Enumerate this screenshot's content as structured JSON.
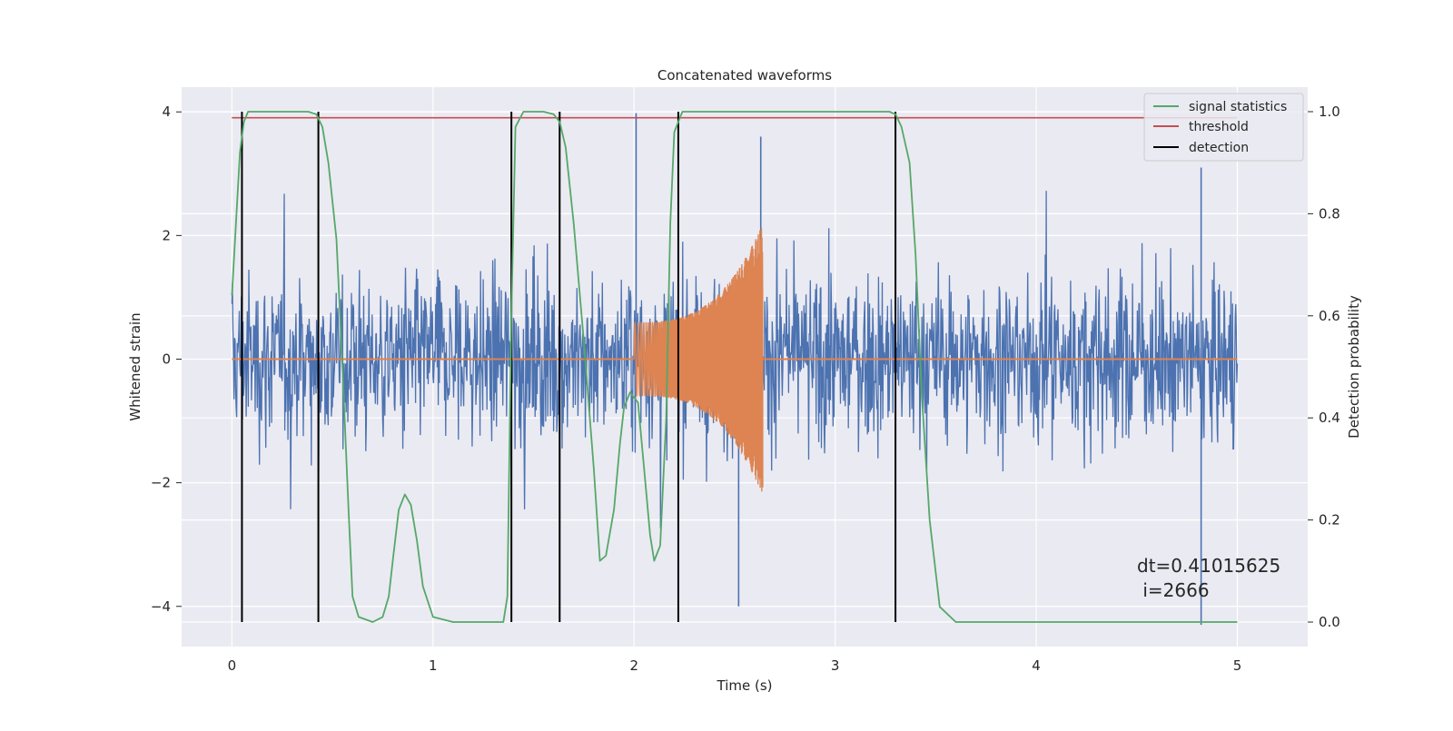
{
  "chart_data": {
    "type": "line",
    "title": "Concatenated waveforms",
    "xlabel": "Time (s)",
    "ylabel": "Whitened strain",
    "y2label": "Detection probability",
    "xlim": [
      -0.25,
      5.35
    ],
    "ylim": [
      -4.65,
      4.4
    ],
    "y2lim": [
      -0.048,
      1.048
    ],
    "xticks": [
      0,
      1,
      2,
      3,
      4,
      5
    ],
    "yticks": [
      -4,
      -2,
      0,
      2,
      4
    ],
    "y2ticks": [
      0.0,
      0.2,
      0.4,
      0.6,
      0.8,
      1.0
    ],
    "xtick_labels": [
      "0",
      "1",
      "2",
      "3",
      "4",
      "5"
    ],
    "ytick_labels": [
      "−4",
      "−2",
      "0",
      "2",
      "4"
    ],
    "y2tick_labels": [
      "0.0",
      "0.2",
      "0.4",
      "0.6",
      "0.8",
      "1.0"
    ],
    "grid": true,
    "legend_position": "top-right",
    "colors": {
      "strain": "#4c72b0",
      "template": "#dd8452",
      "signal_statistics": "#55a868",
      "threshold": "#c44e52",
      "detection": "#000000",
      "axes_face": "#eaeaf2",
      "grid": "#ffffff"
    },
    "strain_series": {
      "x_start": 0,
      "x_end": 5,
      "typical_range": [
        -1.0,
        1.0
      ],
      "max": 3.98,
      "min": -4.3
    },
    "template_chirp": {
      "x_start": 2.0,
      "x_end": 2.64,
      "amplitude_start": 0.6,
      "amplitude_end": 2.2
    },
    "series": [
      {
        "name": "signal statistics",
        "axis": "right",
        "x": [
          0,
          0.02,
          0.04,
          0.06,
          0.08,
          0.12,
          0.2,
          0.3,
          0.38,
          0.42,
          0.45,
          0.48,
          0.52,
          0.55,
          0.58,
          0.6,
          0.63,
          0.7,
          0.75,
          0.78,
          0.8,
          0.83,
          0.86,
          0.89,
          0.92,
          0.95,
          1.0,
          1.1,
          1.3,
          1.35,
          1.37,
          1.39,
          1.41,
          1.45,
          1.55,
          1.6,
          1.63,
          1.66,
          1.7,
          1.75,
          1.8,
          1.83,
          1.86,
          1.9,
          1.93,
          1.95,
          1.98,
          2.02,
          2.05,
          2.08,
          2.1,
          2.13,
          2.16,
          2.18,
          2.2,
          2.24,
          2.3,
          2.5,
          3.0,
          3.27,
          3.3,
          3.33,
          3.37,
          3.4,
          3.43,
          3.47,
          3.52,
          3.6,
          4.0,
          4.5,
          5.0
        ],
        "values": [
          0.64,
          0.78,
          0.92,
          0.98,
          1.0,
          1.0,
          1.0,
          1.0,
          1.0,
          0.995,
          0.97,
          0.9,
          0.75,
          0.5,
          0.22,
          0.05,
          0.01,
          0.0,
          0.01,
          0.05,
          0.12,
          0.22,
          0.25,
          0.23,
          0.16,
          0.07,
          0.01,
          0.0,
          0.0,
          0.0,
          0.05,
          0.6,
          0.97,
          1.0,
          1.0,
          0.995,
          0.98,
          0.93,
          0.78,
          0.55,
          0.3,
          0.12,
          0.13,
          0.22,
          0.35,
          0.42,
          0.45,
          0.43,
          0.3,
          0.17,
          0.12,
          0.15,
          0.4,
          0.78,
          0.96,
          1.0,
          1.0,
          1.0,
          1.0,
          1.0,
          0.995,
          0.97,
          0.9,
          0.72,
          0.45,
          0.2,
          0.03,
          0.0,
          0.0,
          0.0,
          0.0
        ]
      },
      {
        "name": "threshold",
        "axis": "right",
        "x": [
          0,
          5
        ],
        "values": [
          0.988,
          0.988
        ]
      },
      {
        "name": "detection",
        "axis": "right",
        "type": "vertical-lines",
        "x": [
          0.05,
          0.43,
          1.39,
          1.63,
          2.22,
          3.3
        ],
        "y_range": [
          0.0,
          1.0
        ]
      }
    ],
    "annotation": {
      "line1": "dt=0.41015625",
      "line2": " i=2666"
    },
    "legend": [
      "signal statistics",
      "threshold",
      "detection"
    ]
  }
}
